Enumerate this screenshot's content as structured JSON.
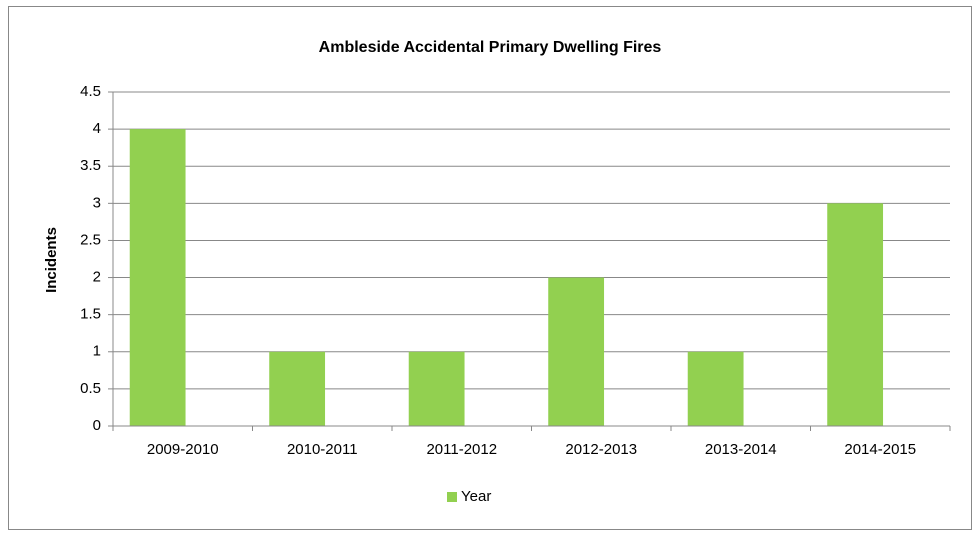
{
  "chart_data": {
    "type": "bar",
    "title": "Ambleside Accidental Primary Dwelling Fires",
    "y_label": "Incidents",
    "categories": [
      "2009-2010",
      "2010-2011",
      "2011-2012",
      "2012-2013",
      "2013-2014",
      "2014-2015"
    ],
    "series": [
      {
        "name": "Year",
        "color": "#92d050",
        "values": [
          4,
          1,
          1,
          2,
          1,
          3
        ]
      }
    ],
    "ylim": [
      0,
      4.5
    ],
    "yticks": [
      0,
      0.5,
      1,
      1.5,
      2,
      2.5,
      3,
      3.5,
      4,
      4.5
    ],
    "grid": true,
    "legend": "bottom"
  }
}
